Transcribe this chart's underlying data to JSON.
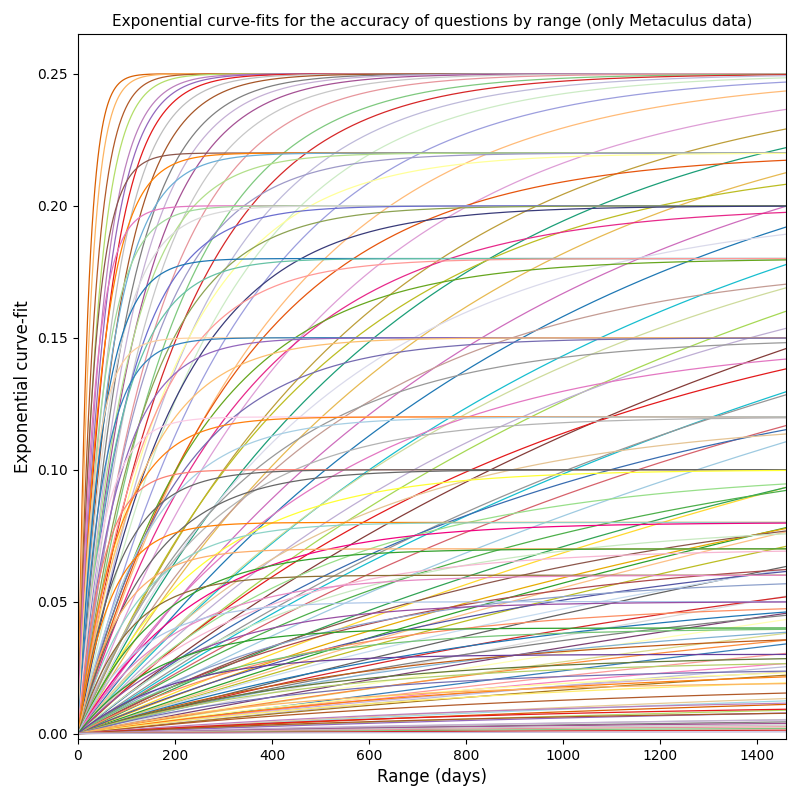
{
  "title": "Exponential curve-fits for the accuracy of questions by range (only Metaculus data)",
  "xlabel": "Range (days)",
  "ylabel": "Exponential curve-fit",
  "xlim": [
    0,
    1460
  ],
  "ylim": [
    -0.002,
    0.265
  ],
  "yticks": [
    0.0,
    0.05,
    0.1,
    0.15,
    0.2,
    0.25
  ],
  "xticks": [
    0,
    200,
    400,
    600,
    800,
    1000,
    1200,
    1400
  ],
  "figsize": [
    8.0,
    8.0
  ],
  "dpi": 100,
  "curves": [
    {
      "a": 0.25,
      "b": 0.05
    },
    {
      "a": 0.25,
      "b": 0.04
    },
    {
      "a": 0.25,
      "b": 0.03
    },
    {
      "a": 0.25,
      "b": 0.025
    },
    {
      "a": 0.25,
      "b": 0.02
    },
    {
      "a": 0.25,
      "b": 0.018
    },
    {
      "a": 0.25,
      "b": 0.016
    },
    {
      "a": 0.25,
      "b": 0.014
    },
    {
      "a": 0.25,
      "b": 0.012
    },
    {
      "a": 0.25,
      "b": 0.01
    },
    {
      "a": 0.25,
      "b": 0.009
    },
    {
      "a": 0.25,
      "b": 0.008
    },
    {
      "a": 0.25,
      "b": 0.007
    },
    {
      "a": 0.25,
      "b": 0.006
    },
    {
      "a": 0.25,
      "b": 0.005
    },
    {
      "a": 0.25,
      "b": 0.0045
    },
    {
      "a": 0.25,
      "b": 0.004
    },
    {
      "a": 0.25,
      "b": 0.0035
    },
    {
      "a": 0.25,
      "b": 0.003
    },
    {
      "a": 0.25,
      "b": 0.0025
    },
    {
      "a": 0.25,
      "b": 0.002
    },
    {
      "a": 0.25,
      "b": 0.0017
    },
    {
      "a": 0.25,
      "b": 0.0015
    },
    {
      "a": 0.25,
      "b": 0.0013
    },
    {
      "a": 0.25,
      "b": 0.0011
    },
    {
      "a": 0.25,
      "b": 0.001
    },
    {
      "a": 0.25,
      "b": 0.00085
    },
    {
      "a": 0.25,
      "b": 0.0007
    },
    {
      "a": 0.25,
      "b": 0.0006
    },
    {
      "a": 0.25,
      "b": 0.0005
    },
    {
      "a": 0.25,
      "b": 0.0004
    },
    {
      "a": 0.25,
      "b": 0.00032
    },
    {
      "a": 0.25,
      "b": 0.00025
    },
    {
      "a": 0.25,
      "b": 0.0002
    },
    {
      "a": 0.25,
      "b": 0.00016
    },
    {
      "a": 0.25,
      "b": 0.00013
    },
    {
      "a": 0.25,
      "b": 0.0001
    },
    {
      "a": 0.22,
      "b": 0.03
    },
    {
      "a": 0.22,
      "b": 0.02
    },
    {
      "a": 0.22,
      "b": 0.015
    },
    {
      "a": 0.22,
      "b": 0.01
    },
    {
      "a": 0.22,
      "b": 0.007
    },
    {
      "a": 0.22,
      "b": 0.005
    },
    {
      "a": 0.22,
      "b": 0.003
    },
    {
      "a": 0.22,
      "b": 0.002
    },
    {
      "a": 0.22,
      "b": 0.001
    },
    {
      "a": 0.22,
      "b": 0.0006
    },
    {
      "a": 0.22,
      "b": 0.0003
    },
    {
      "a": 0.2,
      "b": 0.03
    },
    {
      "a": 0.2,
      "b": 0.02
    },
    {
      "a": 0.2,
      "b": 0.015
    },
    {
      "a": 0.2,
      "b": 0.01
    },
    {
      "a": 0.2,
      "b": 0.007
    },
    {
      "a": 0.2,
      "b": 0.005
    },
    {
      "a": 0.2,
      "b": 0.003
    },
    {
      "a": 0.2,
      "b": 0.002
    },
    {
      "a": 0.2,
      "b": 0.001
    },
    {
      "a": 0.2,
      "b": 0.0006
    },
    {
      "a": 0.2,
      "b": 0.0003
    },
    {
      "a": 0.18,
      "b": 0.02
    },
    {
      "a": 0.18,
      "b": 0.012
    },
    {
      "a": 0.18,
      "b": 0.007
    },
    {
      "a": 0.18,
      "b": 0.004
    },
    {
      "a": 0.18,
      "b": 0.002
    },
    {
      "a": 0.18,
      "b": 0.001
    },
    {
      "a": 0.18,
      "b": 0.0005
    },
    {
      "a": 0.18,
      "b": 0.0002
    },
    {
      "a": 0.15,
      "b": 0.03
    },
    {
      "a": 0.15,
      "b": 0.02
    },
    {
      "a": 0.15,
      "b": 0.012
    },
    {
      "a": 0.15,
      "b": 0.008
    },
    {
      "a": 0.15,
      "b": 0.005
    },
    {
      "a": 0.15,
      "b": 0.003
    },
    {
      "a": 0.15,
      "b": 0.002
    },
    {
      "a": 0.15,
      "b": 0.001
    },
    {
      "a": 0.15,
      "b": 0.0005
    },
    {
      "a": 0.15,
      "b": 0.0002
    },
    {
      "a": 0.12,
      "b": 0.02
    },
    {
      "a": 0.12,
      "b": 0.012
    },
    {
      "a": 0.12,
      "b": 0.007
    },
    {
      "a": 0.12,
      "b": 0.004
    },
    {
      "a": 0.12,
      "b": 0.002
    },
    {
      "a": 0.12,
      "b": 0.001
    },
    {
      "a": 0.12,
      "b": 0.0005
    },
    {
      "a": 0.12,
      "b": 0.0002
    },
    {
      "a": 0.1,
      "b": 0.02
    },
    {
      "a": 0.1,
      "b": 0.012
    },
    {
      "a": 0.1,
      "b": 0.007
    },
    {
      "a": 0.1,
      "b": 0.004
    },
    {
      "a": 0.1,
      "b": 0.002
    },
    {
      "a": 0.1,
      "b": 0.001
    },
    {
      "a": 0.1,
      "b": 0.0005
    },
    {
      "a": 0.1,
      "b": 0.0002
    },
    {
      "a": 0.08,
      "b": 0.015
    },
    {
      "a": 0.08,
      "b": 0.008
    },
    {
      "a": 0.08,
      "b": 0.004
    },
    {
      "a": 0.08,
      "b": 0.002
    },
    {
      "a": 0.08,
      "b": 0.001
    },
    {
      "a": 0.08,
      "b": 0.0004
    },
    {
      "a": 0.07,
      "b": 0.012
    },
    {
      "a": 0.07,
      "b": 0.006
    },
    {
      "a": 0.07,
      "b": 0.003
    },
    {
      "a": 0.07,
      "b": 0.0015
    },
    {
      "a": 0.07,
      "b": 0.0007
    },
    {
      "a": 0.06,
      "b": 0.01
    },
    {
      "a": 0.06,
      "b": 0.005
    },
    {
      "a": 0.06,
      "b": 0.002
    },
    {
      "a": 0.06,
      "b": 0.001
    },
    {
      "a": 0.06,
      "b": 0.0004
    },
    {
      "a": 0.05,
      "b": 0.008
    },
    {
      "a": 0.05,
      "b": 0.004
    },
    {
      "a": 0.05,
      "b": 0.002
    },
    {
      "a": 0.05,
      "b": 0.001
    },
    {
      "a": 0.05,
      "b": 0.0004
    },
    {
      "a": 0.04,
      "b": 0.006
    },
    {
      "a": 0.04,
      "b": 0.003
    },
    {
      "a": 0.04,
      "b": 0.0015
    },
    {
      "a": 0.04,
      "b": 0.0006
    },
    {
      "a": 0.03,
      "b": 0.005
    },
    {
      "a": 0.03,
      "b": 0.002
    },
    {
      "a": 0.03,
      "b": 0.001
    },
    {
      "a": 0.03,
      "b": 0.0004
    },
    {
      "a": 0.028,
      "b": 0.002
    },
    {
      "a": 0.028,
      "b": 0.001
    },
    {
      "a": 0.028,
      "b": 0.0004
    },
    {
      "a": 0.025,
      "b": 0.002
    },
    {
      "a": 0.025,
      "b": 0.001
    },
    {
      "a": 0.025,
      "b": 0.0004
    },
    {
      "a": 0.02,
      "b": 0.002
    },
    {
      "a": 0.02,
      "b": 0.001
    },
    {
      "a": 0.02,
      "b": 0.0004
    },
    {
      "a": 0.015,
      "b": 0.001
    },
    {
      "a": 0.015,
      "b": 0.0005
    },
    {
      "a": 0.012,
      "b": 0.001
    },
    {
      "a": 0.012,
      "b": 0.0004
    },
    {
      "a": 0.01,
      "b": 0.001
    },
    {
      "a": 0.01,
      "b": 0.0004
    },
    {
      "a": 0.008,
      "b": 0.0007
    },
    {
      "a": 0.006,
      "b": 0.0007
    },
    {
      "a": 0.005,
      "b": 0.0007
    },
    {
      "a": 0.004,
      "b": 0.0007
    },
    {
      "a": 0.003,
      "b": 0.0007
    },
    {
      "a": 0.002,
      "b": 0.0007
    },
    {
      "a": 0.001,
      "b": 0.0007
    }
  ]
}
